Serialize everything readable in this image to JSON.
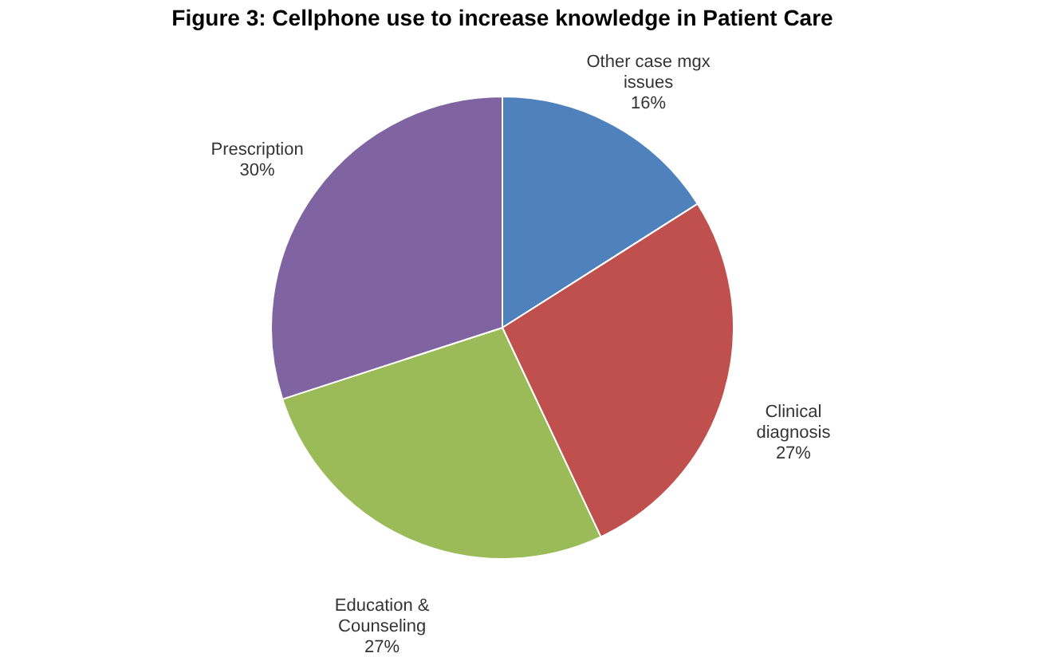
{
  "chart_data": {
    "type": "pie",
    "title": "Figure 3: Cellphone use to increase knowledge in Patient Care",
    "categories": [
      "Other case mgx issues",
      "Clinical diagnosis",
      "Education & Counseling",
      "Prescription"
    ],
    "values": [
      16,
      27,
      27,
      30
    ],
    "value_labels": [
      "16%",
      "27%",
      "27%",
      "30%"
    ],
    "colors": [
      "#4f81bd",
      "#c0504d",
      "#9bbb59",
      "#8064a2"
    ],
    "legend": false
  }
}
